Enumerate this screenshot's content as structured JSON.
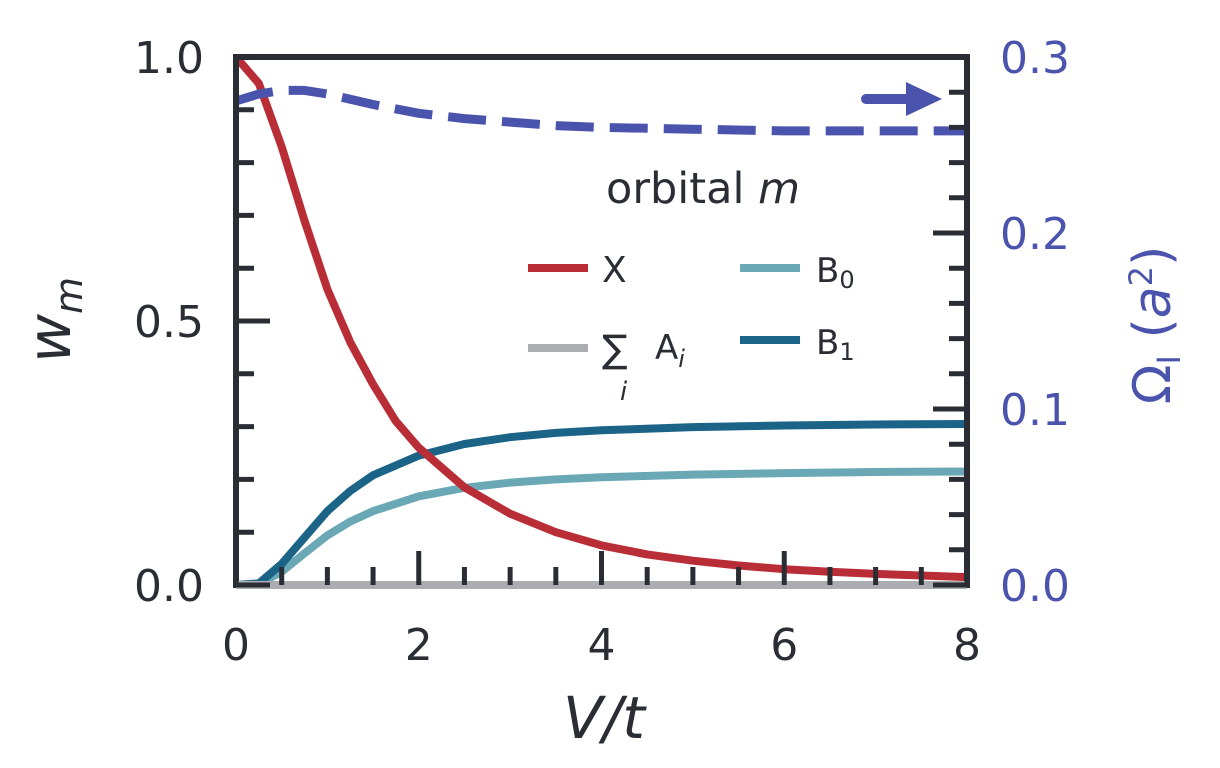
{
  "chart_data": {
    "type": "line",
    "xlabel": "V/t",
    "ylabel": "w",
    "ylabel_sub": "m",
    "y2label": "Ω",
    "y2label_sub": "I",
    "y2label_unit_open": "(",
    "y2label_unit_base": "a",
    "y2label_unit_exp": "2",
    "y2label_unit_close": ")",
    "xlim": [
      0,
      8
    ],
    "ylim": [
      0,
      1
    ],
    "y2lim": [
      0,
      0.3
    ],
    "xticks": [
      0,
      2,
      4,
      6,
      8
    ],
    "xtick_labels": [
      "0",
      "2",
      "4",
      "6",
      "8"
    ],
    "yticks": [
      0.0,
      0.5,
      1.0
    ],
    "ytick_labels": [
      "0.0",
      "0.5",
      "1.0"
    ],
    "y2ticks": [
      0.0,
      0.1,
      0.2,
      0.3
    ],
    "y2tick_labels": [
      "0.0",
      "0.1",
      "0.2",
      "0.3"
    ],
    "legend": {
      "title_text": "orbital ",
      "title_var": "m",
      "placement": "center-right"
    },
    "colors": {
      "X": "#b92d37",
      "A": "#acadb0",
      "B0": "#6aa8b6",
      "B1": "#1b6488",
      "omega": "#4b54ad",
      "axes": "#2b2d35"
    },
    "series": [
      {
        "name": "X",
        "axis": "left",
        "x": [
          0,
          0.25,
          0.5,
          0.75,
          1.0,
          1.25,
          1.5,
          1.75,
          2.0,
          2.5,
          3.0,
          3.5,
          4.0,
          4.5,
          5.0,
          5.5,
          6.0,
          6.5,
          7.0,
          7.5,
          8.0
        ],
        "y": [
          1.0,
          0.95,
          0.83,
          0.69,
          0.56,
          0.46,
          0.38,
          0.31,
          0.26,
          0.185,
          0.135,
          0.1,
          0.075,
          0.058,
          0.046,
          0.037,
          0.03,
          0.025,
          0.021,
          0.018,
          0.015
        ]
      },
      {
        "name_base": "A",
        "name_sub": "i",
        "name_sum": "∑",
        "name_sum_index": "i",
        "axis": "left",
        "x": [
          0,
          8
        ],
        "y": [
          0,
          0
        ]
      },
      {
        "name_base": "B",
        "name_sub": "0",
        "axis": "left",
        "x": [
          0,
          0.25,
          0.5,
          0.75,
          1.0,
          1.25,
          1.5,
          2.0,
          2.5,
          3.0,
          3.5,
          4.0,
          5.0,
          6.0,
          7.0,
          8.0
        ],
        "y": [
          0,
          0.002,
          0.025,
          0.06,
          0.094,
          0.12,
          0.14,
          0.168,
          0.184,
          0.194,
          0.2,
          0.204,
          0.209,
          0.212,
          0.214,
          0.215
        ]
      },
      {
        "name_base": "B",
        "name_sub": "1",
        "axis": "left",
        "x": [
          0,
          0.25,
          0.5,
          0.75,
          1.0,
          1.25,
          1.5,
          2.0,
          2.5,
          3.0,
          3.5,
          4.0,
          5.0,
          6.0,
          7.0,
          8.0
        ],
        "y": [
          0,
          0.003,
          0.04,
          0.09,
          0.14,
          0.178,
          0.208,
          0.245,
          0.267,
          0.28,
          0.288,
          0.293,
          0.299,
          0.302,
          0.304,
          0.305
        ]
      },
      {
        "axis": "right",
        "style": "dashed",
        "x": [
          0,
          0.25,
          0.5,
          0.75,
          1.0,
          1.5,
          2.0,
          2.5,
          3.0,
          3.5,
          4.0,
          5.0,
          6.0,
          7.0,
          8.0
        ],
        "y": [
          0.275,
          0.279,
          0.281,
          0.281,
          0.279,
          0.273,
          0.268,
          0.265,
          0.263,
          0.261,
          0.26,
          0.259,
          0.258,
          0.258,
          0.258
        ]
      }
    ]
  }
}
